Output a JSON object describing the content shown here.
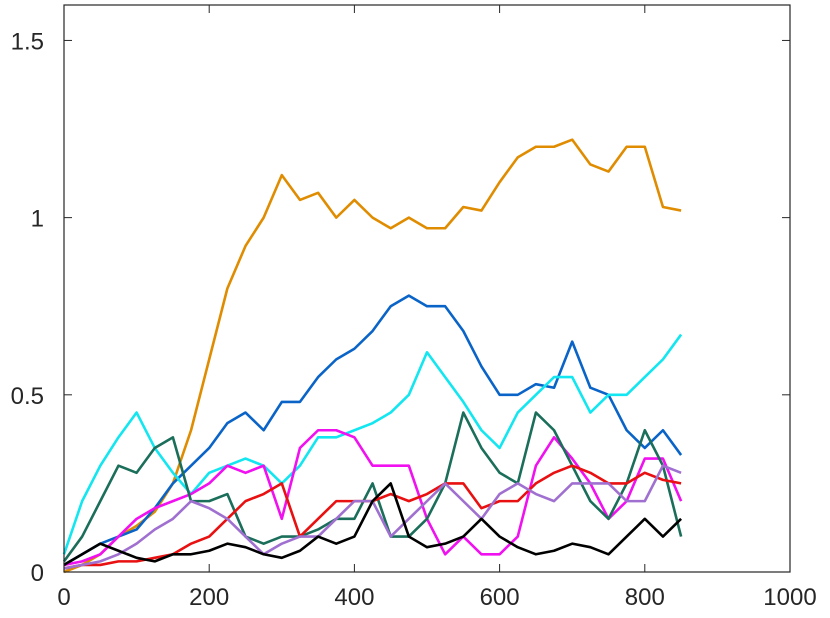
{
  "chart_data": {
    "type": "line",
    "grid": false,
    "xlim": [
      0,
      1000
    ],
    "ylim": [
      0,
      1.6
    ],
    "xticks": [
      0,
      200,
      400,
      600,
      800,
      1000
    ],
    "yticks": [
      0,
      0.5,
      1,
      1.5
    ],
    "x": [
      0,
      25,
      50,
      75,
      100,
      125,
      150,
      175,
      200,
      225,
      250,
      275,
      300,
      325,
      350,
      375,
      400,
      425,
      450,
      475,
      500,
      525,
      550,
      575,
      600,
      625,
      650,
      675,
      700,
      725,
      750,
      775,
      800,
      825,
      850
    ],
    "series": [
      {
        "color": "#e08c00",
        "values": [
          0,
          0.02,
          0.05,
          0.1,
          0.13,
          0.17,
          0.25,
          0.4,
          0.6,
          0.8,
          0.92,
          1.0,
          1.12,
          1.05,
          1.07,
          1.0,
          1.05,
          1.0,
          0.97,
          1.0,
          0.97,
          0.97,
          1.03,
          1.02,
          1.1,
          1.17,
          1.2,
          1.2,
          1.22,
          1.15,
          1.13,
          1.2,
          1.2,
          1.03,
          1.02
        ]
      },
      {
        "color": "#0a64c8",
        "values": [
          0.02,
          0.05,
          0.08,
          0.1,
          0.12,
          0.18,
          0.25,
          0.3,
          0.35,
          0.42,
          0.45,
          0.4,
          0.48,
          0.48,
          0.55,
          0.6,
          0.63,
          0.68,
          0.75,
          0.78,
          0.75,
          0.75,
          0.68,
          0.58,
          0.5,
          0.5,
          0.53,
          0.52,
          0.65,
          0.52,
          0.5,
          0.4,
          0.35,
          0.4,
          0.33
        ]
      },
      {
        "color": "#12e6f0",
        "values": [
          0.05,
          0.2,
          0.3,
          0.38,
          0.45,
          0.35,
          0.28,
          0.22,
          0.28,
          0.3,
          0.32,
          0.3,
          0.25,
          0.3,
          0.38,
          0.38,
          0.4,
          0.42,
          0.45,
          0.5,
          0.62,
          0.55,
          0.48,
          0.4,
          0.35,
          0.45,
          0.5,
          0.55,
          0.55,
          0.45,
          0.5,
          0.5,
          0.55,
          0.6,
          0.67
        ]
      },
      {
        "color": "#f010f0",
        "values": [
          0.02,
          0.03,
          0.05,
          0.1,
          0.15,
          0.18,
          0.2,
          0.22,
          0.25,
          0.3,
          0.28,
          0.3,
          0.15,
          0.35,
          0.4,
          0.4,
          0.38,
          0.3,
          0.3,
          0.3,
          0.15,
          0.05,
          0.1,
          0.05,
          0.05,
          0.1,
          0.3,
          0.38,
          0.32,
          0.25,
          0.15,
          0.2,
          0.32,
          0.32,
          0.2
        ]
      },
      {
        "color": "#1a6e5a",
        "values": [
          0.03,
          0.1,
          0.2,
          0.3,
          0.28,
          0.35,
          0.38,
          0.2,
          0.2,
          0.22,
          0.1,
          0.08,
          0.1,
          0.1,
          0.12,
          0.15,
          0.15,
          0.25,
          0.1,
          0.1,
          0.15,
          0.25,
          0.45,
          0.35,
          0.28,
          0.25,
          0.45,
          0.4,
          0.3,
          0.2,
          0.15,
          0.25,
          0.4,
          0.3,
          0.1
        ]
      },
      {
        "color": "#e81010",
        "values": [
          0.01,
          0.02,
          0.02,
          0.03,
          0.03,
          0.04,
          0.05,
          0.08,
          0.1,
          0.15,
          0.2,
          0.22,
          0.25,
          0.1,
          0.15,
          0.2,
          0.2,
          0.2,
          0.22,
          0.2,
          0.22,
          0.25,
          0.25,
          0.18,
          0.2,
          0.2,
          0.25,
          0.28,
          0.3,
          0.28,
          0.25,
          0.25,
          0.28,
          0.26,
          0.25
        ]
      },
      {
        "color": "#a070d0",
        "values": [
          0.01,
          0.02,
          0.03,
          0.05,
          0.08,
          0.12,
          0.15,
          0.2,
          0.18,
          0.15,
          0.1,
          0.05,
          0.08,
          0.1,
          0.1,
          0.15,
          0.2,
          0.2,
          0.1,
          0.15,
          0.2,
          0.25,
          0.2,
          0.15,
          0.22,
          0.25,
          0.22,
          0.2,
          0.25,
          0.25,
          0.25,
          0.2,
          0.2,
          0.3,
          0.28
        ]
      },
      {
        "color": "#000000",
        "values": [
          0.02,
          0.05,
          0.08,
          0.06,
          0.04,
          0.03,
          0.05,
          0.05,
          0.06,
          0.08,
          0.07,
          0.05,
          0.04,
          0.06,
          0.1,
          0.08,
          0.1,
          0.2,
          0.25,
          0.1,
          0.07,
          0.08,
          0.1,
          0.15,
          0.1,
          0.07,
          0.05,
          0.06,
          0.08,
          0.07,
          0.05,
          0.1,
          0.15,
          0.1,
          0.15
        ]
      }
    ]
  }
}
